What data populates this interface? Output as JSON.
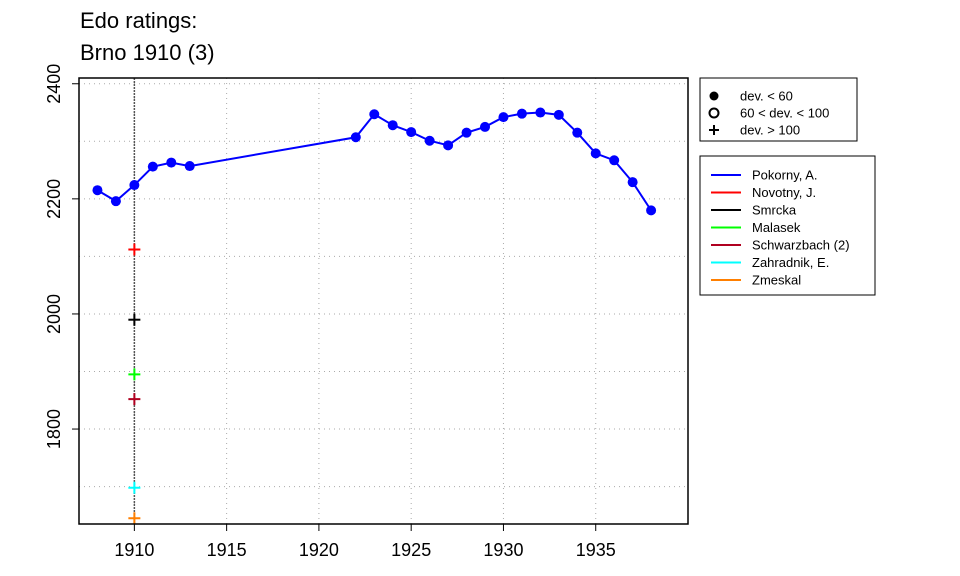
{
  "chart_data": {
    "type": "line",
    "title_lines": [
      "Edo ratings:",
      "Brno 1910 (3)"
    ],
    "xlabel": "",
    "ylabel": "",
    "xlim": [
      1907,
      1940
    ],
    "ylim": [
      1635,
      2410
    ],
    "x_ticks": [
      1910,
      1915,
      1920,
      1925,
      1930,
      1935
    ],
    "y_ticks": [
      1800,
      2000,
      2200,
      2400
    ],
    "grid": "dotted",
    "event_line_x": 1910,
    "series": [
      {
        "name": "Pokorny, A.",
        "color": "#0000ff",
        "marker": "dev. < 60",
        "connected": true,
        "x": [
          1908,
          1909,
          1910,
          1911,
          1912,
          1913,
          1922,
          1923,
          1924,
          1925,
          1926,
          1927,
          1928,
          1929,
          1930,
          1931,
          1932,
          1933,
          1934,
          1935,
          1936,
          1937,
          1938
        ],
        "y": [
          2215,
          2196,
          2224,
          2256,
          2263,
          2257,
          2307,
          2347,
          2328,
          2316,
          2301,
          2293,
          2315,
          2325,
          2342,
          2348,
          2350,
          2346,
          2315,
          2279,
          2267,
          2229,
          2180
        ]
      },
      {
        "name": "Novotny, J.",
        "color": "#ff0000",
        "marker": "dev. > 100",
        "connected": false,
        "x": [
          1910
        ],
        "y": [
          2112
        ]
      },
      {
        "name": "Smrcka",
        "color": "#000000",
        "marker": "dev. > 100",
        "connected": false,
        "x": [
          1910
        ],
        "y": [
          1990
        ]
      },
      {
        "name": "Malasek",
        "color": "#00ff00",
        "marker": "dev. > 100",
        "connected": false,
        "x": [
          1910
        ],
        "y": [
          1895
        ]
      },
      {
        "name": "Schwarzbach (2)",
        "color": "#b00020",
        "marker": "dev. > 100",
        "connected": false,
        "x": [
          1910
        ],
        "y": [
          1852
        ]
      },
      {
        "name": "Zahradnik, E.",
        "color": "#00ffff",
        "marker": "dev. > 100",
        "connected": false,
        "x": [
          1910
        ],
        "y": [
          1698
        ]
      },
      {
        "name": "Zmeskal",
        "color": "#ff7f00",
        "marker": "dev. > 100",
        "connected": false,
        "x": [
          1910
        ],
        "y": [
          1645
        ]
      }
    ],
    "marker_legend": [
      {
        "label": "dev. < 60",
        "symbol": "filled-circle"
      },
      {
        "label": "60 < dev. < 100",
        "symbol": "open-circle"
      },
      {
        "label": "dev. > 100",
        "symbol": "plus"
      }
    ],
    "legend_placement": "right"
  }
}
